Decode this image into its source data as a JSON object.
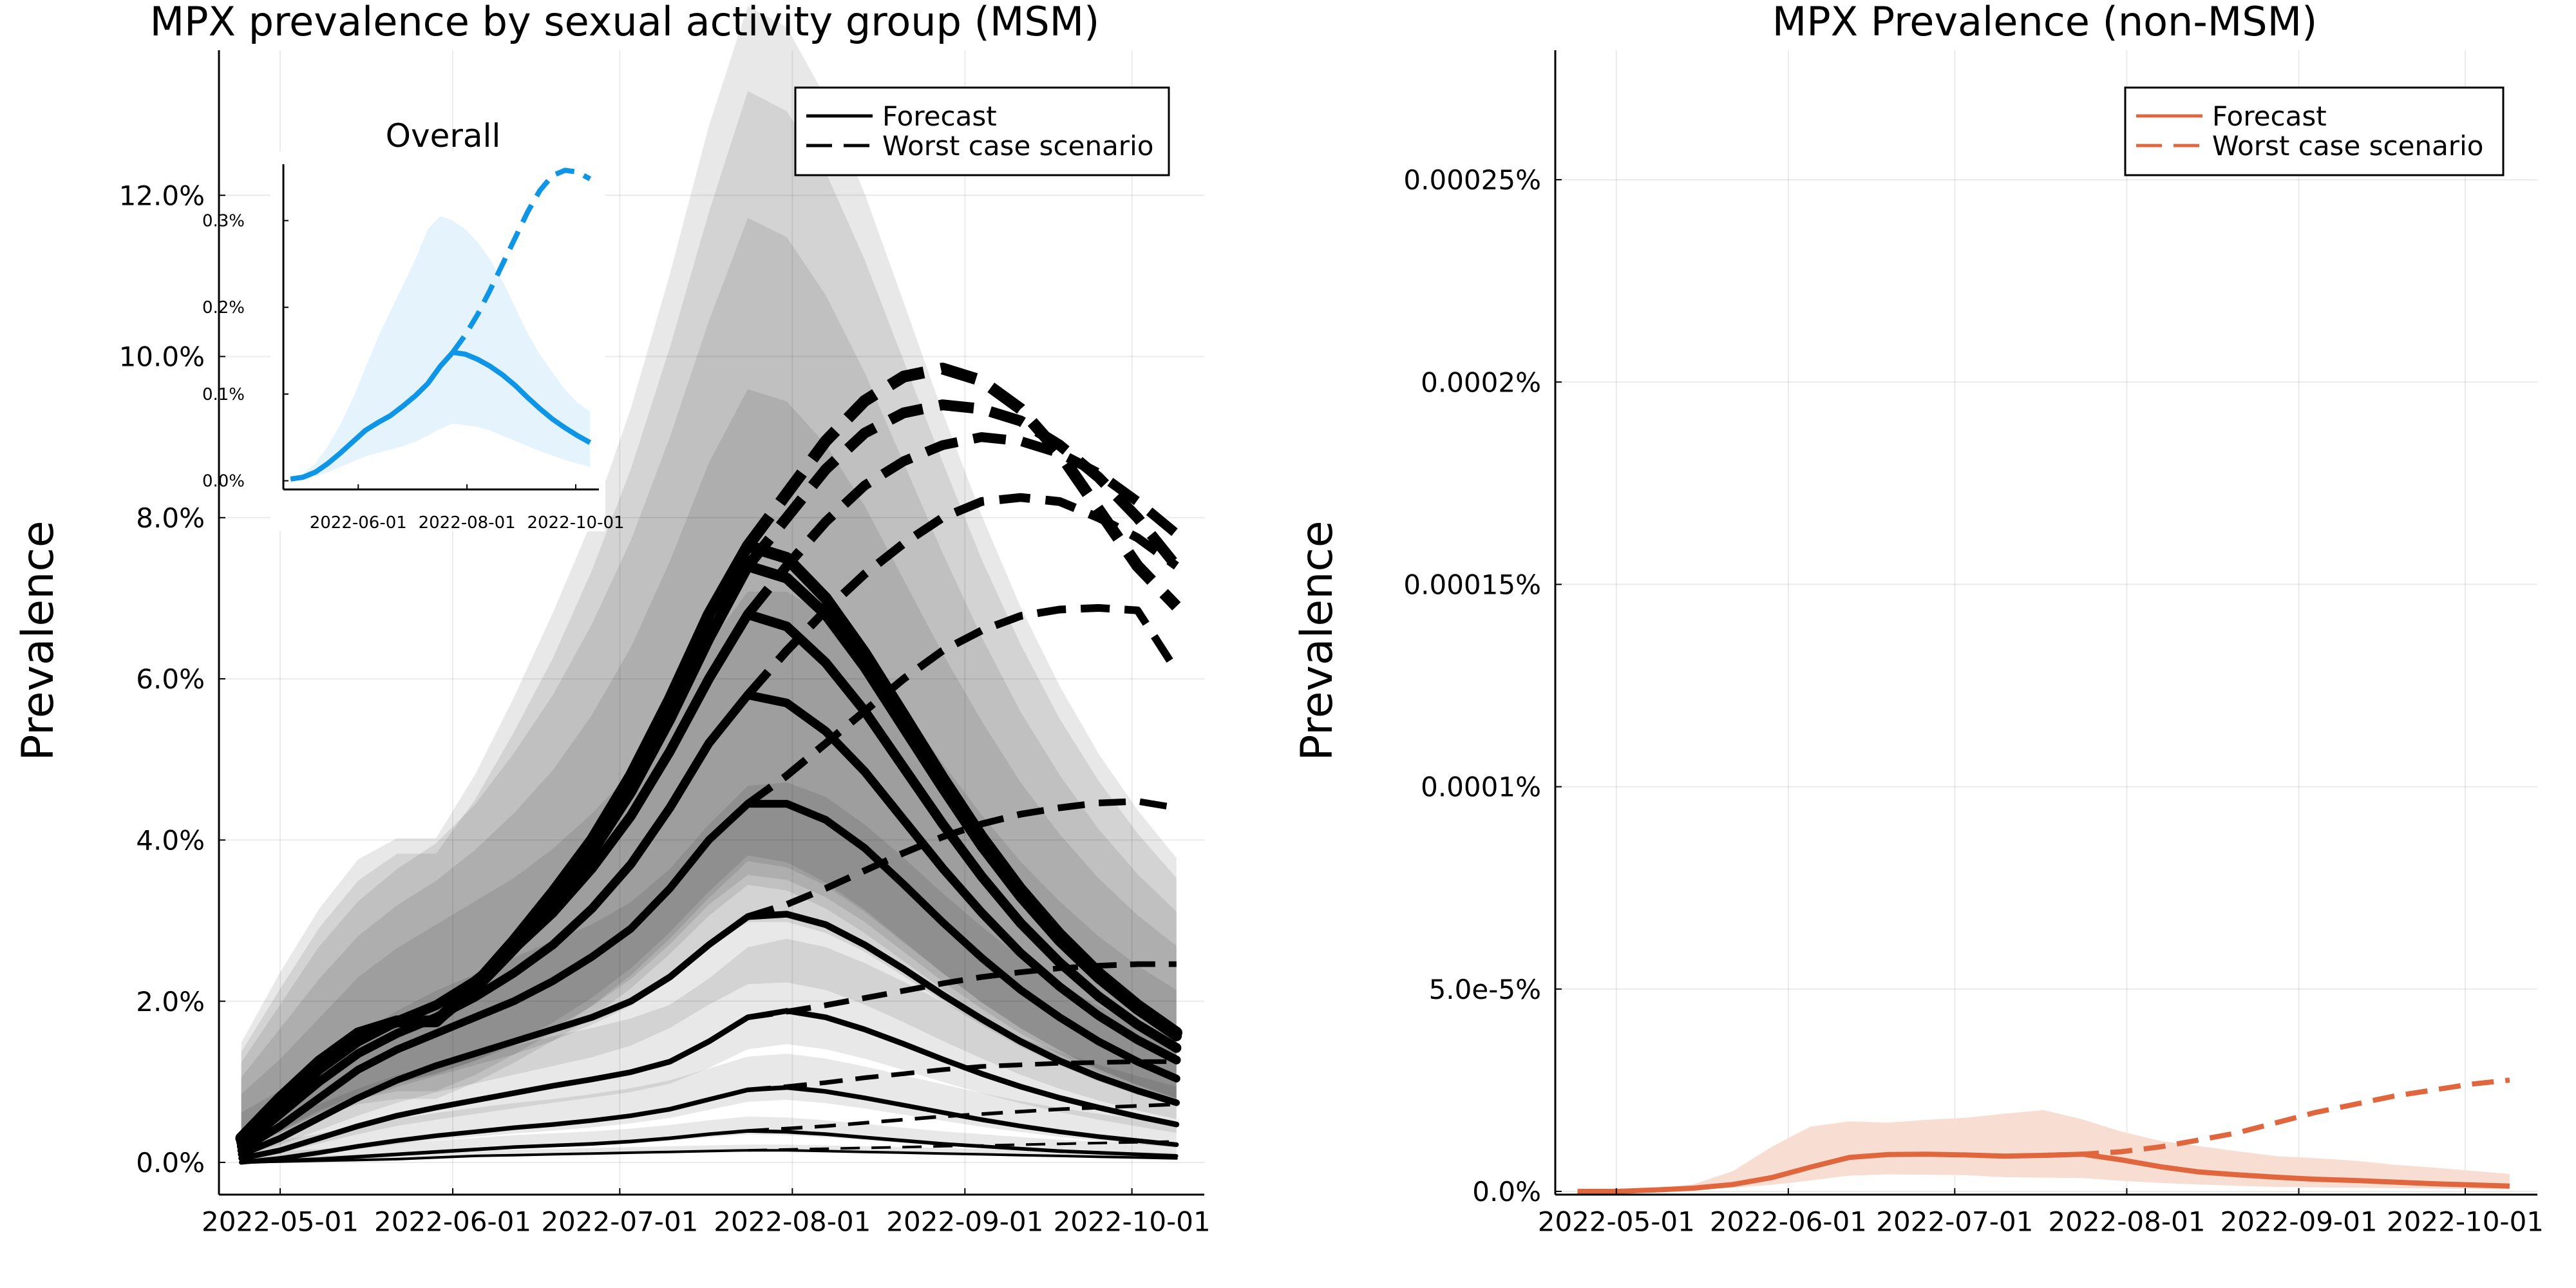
{
  "chart_data": [
    {
      "type": "line",
      "title": "MPX prevalence by sexual activity group (MSM)",
      "ylabel": "Prevalence",
      "xlabel": "",
      "x_ticks": [
        "2022-05-01",
        "2022-06-01",
        "2022-07-01",
        "2022-08-01",
        "2022-09-01",
        "2022-10-01"
      ],
      "y_ticks": [
        "0.0%",
        "2.0%",
        "4.0%",
        "6.0%",
        "8.0%",
        "10.0%",
        "12.0%"
      ],
      "ylim": [
        -0.004,
        0.138
      ],
      "xlim": [
        "2022-04-20",
        "2022-10-14"
      ],
      "grid": true,
      "legend": {
        "position": "top-right",
        "entries": [
          "Forecast",
          "Worst case scenario"
        ]
      },
      "legend_color": "#000000",
      "x": [
        "2022-04-24",
        "2022-05-01",
        "2022-05-08",
        "2022-05-15",
        "2022-05-22",
        "2022-05-29",
        "2022-06-05",
        "2022-06-12",
        "2022-06-19",
        "2022-06-26",
        "2022-07-03",
        "2022-07-10",
        "2022-07-17",
        "2022-07-24",
        "2022-07-31",
        "2022-08-07",
        "2022-08-14",
        "2022-08-21",
        "2022-08-28",
        "2022-09-04",
        "2022-09-11",
        "2022-09-18",
        "2022-09-25",
        "2022-10-02",
        "2022-10-09"
      ],
      "forecast_start": "2022-07-24",
      "groups": [
        {
          "forecast": [
            0.0,
            0.0001,
            0.0002,
            0.0003,
            0.0004,
            0.0006,
            0.0008,
            0.0009,
            0.001,
            0.0011,
            0.0012,
            0.0013,
            0.0014,
            0.0015,
            0.0015,
            0.0014,
            0.0013,
            0.0012,
            0.0011,
            0.001,
            0.0009,
            0.0008,
            0.0007,
            0.0006,
            0.0005
          ],
          "worst": [
            0.0015,
            0.0016,
            0.0017,
            0.0018,
            0.0019,
            0.002,
            0.0021,
            0.0022,
            0.0023,
            0.0024,
            0.0025,
            0.0026
          ],
          "band": [
            0.004,
            0.005
          ]
        },
        {
          "forecast": [
            0.0,
            0.0002,
            0.0004,
            0.0007,
            0.001,
            0.0013,
            0.0016,
            0.0019,
            0.0021,
            0.0023,
            0.0026,
            0.003,
            0.0035,
            0.0039,
            0.0038,
            0.0035,
            0.0031,
            0.0027,
            0.0023,
            0.002,
            0.0017,
            0.0014,
            0.0012,
            0.001,
            0.0008
          ],
          "worst": [
            0.0039,
            0.0042,
            0.0045,
            0.0049,
            0.0053,
            0.0057,
            0.006,
            0.0063,
            0.0066,
            0.0068,
            0.007,
            0.0072
          ],
          "band": [
            0.008,
            0.01
          ]
        },
        {
          "forecast": [
            0.0,
            0.0005,
            0.0012,
            0.002,
            0.0027,
            0.0033,
            0.0038,
            0.0043,
            0.0047,
            0.0052,
            0.0058,
            0.0066,
            0.0078,
            0.009,
            0.0093,
            0.0088,
            0.008,
            0.0071,
            0.0062,
            0.0053,
            0.0045,
            0.0038,
            0.0032,
            0.0027,
            0.0022
          ],
          "worst": [
            0.009,
            0.0094,
            0.0099,
            0.0105,
            0.011,
            0.0115,
            0.0119,
            0.0121,
            0.0123,
            0.0124,
            0.0125,
            0.0125
          ],
          "band": [
            0.014,
            0.016
          ]
        },
        {
          "forecast": [
            0.0005,
            0.0015,
            0.003,
            0.0045,
            0.0058,
            0.0068,
            0.0077,
            0.0086,
            0.0095,
            0.0103,
            0.0112,
            0.0125,
            0.015,
            0.018,
            0.0188,
            0.018,
            0.0165,
            0.0147,
            0.0128,
            0.011,
            0.0094,
            0.008,
            0.0068,
            0.0057,
            0.0047
          ],
          "worst": [
            0.018,
            0.0187,
            0.0195,
            0.0204,
            0.0213,
            0.0222,
            0.023,
            0.0236,
            0.0241,
            0.0244,
            0.0246,
            0.0246
          ],
          "band": [
            0.022,
            0.025
          ]
        },
        {
          "forecast": [
            0.001,
            0.003,
            0.0055,
            0.008,
            0.0102,
            0.012,
            0.0135,
            0.015,
            0.0165,
            0.018,
            0.02,
            0.023,
            0.027,
            0.0305,
            0.0308,
            0.0295,
            0.027,
            0.024,
            0.0208,
            0.0178,
            0.015,
            0.0126,
            0.0106,
            0.0089,
            0.0074
          ],
          "worst": [
            0.0305,
            0.032,
            0.034,
            0.0362,
            0.0384,
            0.0404,
            0.042,
            0.0432,
            0.044,
            0.0446,
            0.0448,
            0.044
          ],
          "band": [
            0.032,
            0.036
          ]
        },
        {
          "forecast": [
            0.0015,
            0.0045,
            0.008,
            0.0115,
            0.014,
            0.016,
            0.018,
            0.02,
            0.0225,
            0.0255,
            0.029,
            0.034,
            0.04,
            0.0445,
            0.0445,
            0.0425,
            0.039,
            0.0345,
            0.0298,
            0.0254,
            0.0214,
            0.018,
            0.015,
            0.0125,
            0.0104
          ],
          "worst": [
            0.0445,
            0.048,
            0.052,
            0.056,
            0.06,
            0.0635,
            0.066,
            0.0678,
            0.0686,
            0.0688,
            0.0685,
            0.061
          ],
          "band": [
            0.042,
            0.046
          ]
        },
        {
          "forecast": [
            0.002,
            0.006,
            0.01,
            0.0135,
            0.016,
            0.018,
            0.0205,
            0.0235,
            0.027,
            0.0315,
            0.037,
            0.044,
            0.052,
            0.058,
            0.057,
            0.0535,
            0.0485,
            0.0425,
            0.0365,
            0.031,
            0.026,
            0.0218,
            0.0182,
            0.0152,
            0.0127
          ],
          "worst": [
            0.058,
            0.0635,
            0.0685,
            0.073,
            0.0768,
            0.08,
            0.082,
            0.0825,
            0.082,
            0.08,
            0.0775,
            0.074
          ],
          "band": [
            0.05,
            0.052
          ]
        },
        {
          "forecast": [
            0.0025,
            0.007,
            0.0115,
            0.015,
            0.0175,
            0.0195,
            0.0225,
            0.0265,
            0.031,
            0.0365,
            0.043,
            0.051,
            0.06,
            0.068,
            0.0665,
            0.062,
            0.056,
            0.049,
            0.042,
            0.0355,
            0.0297,
            0.0248,
            0.0206,
            0.0171,
            0.0142
          ],
          "worst": [
            0.068,
            0.074,
            0.0795,
            0.084,
            0.087,
            0.089,
            0.09,
            0.0895,
            0.088,
            0.0855,
            0.082,
            0.078
          ],
          "band": [
            0.056,
            0.058
          ]
        },
        {
          "forecast": [
            0.0028,
            0.0075,
            0.012,
            0.0155,
            0.0175,
            0.0175,
            0.0215,
            0.0265,
            0.032,
            0.0385,
            0.046,
            0.055,
            0.065,
            0.074,
            0.0725,
            0.068,
            0.0615,
            0.054,
            0.0465,
            0.0393,
            0.033,
            0.0275,
            0.0229,
            0.019,
            0.0157
          ],
          "worst": [
            0.074,
            0.08,
            0.086,
            0.0905,
            0.093,
            0.094,
            0.0935,
            0.092,
            0.089,
            0.085,
            0.08,
            0.074
          ],
          "band": [
            0.06,
            0.062
          ]
        },
        {
          "forecast": [
            0.003,
            0.008,
            0.0125,
            0.016,
            0.0175,
            0.0175,
            0.022,
            0.0275,
            0.0335,
            0.04,
            0.048,
            0.0575,
            0.068,
            0.0765,
            0.075,
            0.07,
            0.0632,
            0.0555,
            0.0477,
            0.0404,
            0.0339,
            0.0283,
            0.0235,
            0.0195,
            0.0161
          ],
          "worst": [
            0.0765,
            0.083,
            0.0895,
            0.0945,
            0.0975,
            0.0985,
            0.097,
            0.0935,
            0.088,
            0.081,
            0.074,
            0.069
          ],
          "band": [
            0.064,
            0.066
          ]
        }
      ]
    },
    {
      "type": "line",
      "title": "Overall",
      "inset_of": "MPX prevalence by sexual activity group (MSM)",
      "x_ticks": [
        "2022-06-01",
        "2022-08-01",
        "2022-10-01"
      ],
      "y_ticks": [
        "0.0%",
        "0.1%",
        "0.2%",
        "0.3%"
      ],
      "ylim": [
        -0.0001,
        0.00365
      ],
      "xlim": [
        "2022-04-20",
        "2022-10-14"
      ],
      "color": "#0f95e6",
      "band_color": "#e4f3fc",
      "x": [
        "2022-04-24",
        "2022-05-01",
        "2022-05-08",
        "2022-05-15",
        "2022-05-22",
        "2022-05-29",
        "2022-06-05",
        "2022-06-12",
        "2022-06-19",
        "2022-06-26",
        "2022-07-03",
        "2022-07-10",
        "2022-07-17",
        "2022-07-24",
        "2022-07-31",
        "2022-08-07",
        "2022-08-14",
        "2022-08-21",
        "2022-08-28",
        "2022-09-04",
        "2022-09-11",
        "2022-09-18",
        "2022-09-25",
        "2022-10-02",
        "2022-10-09"
      ],
      "forecast": [
        2e-05,
        4e-05,
        0.0001,
        0.0002,
        0.00032,
        0.00045,
        0.00058,
        0.00067,
        0.00075,
        0.00086,
        0.00098,
        0.00112,
        0.00132,
        0.00148,
        0.00146,
        0.0014,
        0.00132,
        0.00122,
        0.0011,
        0.00096,
        0.00083,
        0.00071,
        0.00061,
        0.00052,
        0.00044
      ],
      "forecast_lower": [
        1e-05,
        2e-05,
        5e-05,
        0.0001,
        0.00016,
        0.00022,
        0.00028,
        0.00032,
        0.00036,
        0.0004,
        0.00045,
        0.00052,
        0.0006,
        0.00066,
        0.00064,
        0.00062,
        0.00058,
        0.00052,
        0.00046,
        0.0004,
        0.00034,
        0.00029,
        0.00024,
        0.0002,
        0.00016
      ],
      "forecast_upper": [
        4e-05,
        8e-05,
        0.0002,
        0.0004,
        0.00065,
        0.00095,
        0.0013,
        0.00165,
        0.00195,
        0.00225,
        0.00255,
        0.0029,
        0.00305,
        0.003,
        0.0029,
        0.00275,
        0.00255,
        0.0023,
        0.002,
        0.0017,
        0.00145,
        0.00125,
        0.00105,
        0.0009,
        0.0008
      ],
      "worst_x": [
        "2022-07-24",
        "2022-07-31",
        "2022-08-07",
        "2022-08-14",
        "2022-08-21",
        "2022-08-28",
        "2022-09-04",
        "2022-09-11",
        "2022-09-18",
        "2022-09-25",
        "2022-10-02",
        "2022-10-09"
      ],
      "worst": [
        0.00148,
        0.00168,
        0.00192,
        0.0022,
        0.0025,
        0.0028,
        0.0031,
        0.00335,
        0.00352,
        0.00358,
        0.00356,
        0.00348
      ]
    },
    {
      "type": "line",
      "title": "MPX Prevalence (non-MSM)",
      "ylabel": "Prevalence",
      "xlabel": "",
      "x_ticks": [
        "2022-05-01",
        "2022-06-01",
        "2022-07-01",
        "2022-08-01",
        "2022-09-01",
        "2022-10-01"
      ],
      "y_ticks": [
        "0.0%",
        "5.0e-5%",
        "0.0001%",
        "0.00015%",
        "0.0002%",
        "0.00025%"
      ],
      "ylim": [
        -8e-09,
        2.82e-06
      ],
      "xlim": [
        "2022-04-20",
        "2022-10-14"
      ],
      "grid": true,
      "color": "#e0663d",
      "band_color": "#f8ddd3",
      "legend": {
        "position": "top-right",
        "entries": [
          "Forecast",
          "Worst case scenario"
        ]
      },
      "x": [
        "2022-04-24",
        "2022-05-01",
        "2022-05-08",
        "2022-05-15",
        "2022-05-22",
        "2022-05-29",
        "2022-06-05",
        "2022-06-12",
        "2022-06-19",
        "2022-06-26",
        "2022-07-03",
        "2022-07-10",
        "2022-07-17",
        "2022-07-24",
        "2022-07-31",
        "2022-08-07",
        "2022-08-14",
        "2022-08-21",
        "2022-08-28",
        "2022-09-04",
        "2022-09-11",
        "2022-09-18",
        "2022-09-25",
        "2022-10-02",
        "2022-10-09"
      ],
      "forecast": [
        0.0,
        0.0,
        3.5e-09,
        8e-09,
        1.7e-08,
        3.4e-08,
        6e-08,
        8.4e-08,
        9.1e-08,
        9.2e-08,
        9e-08,
        8.7e-08,
        8.9e-08,
        9.2e-08,
        7.8e-08,
        6.1e-08,
        4.8e-08,
        4.1e-08,
        3.5e-08,
        3e-08,
        2.7e-08,
        2.3e-08,
        1.9e-08,
        1.6e-08,
        1.3e-08
      ],
      "forecast_lower": [
        0.0,
        0.0,
        2e-09,
        4.5e-09,
        9e-09,
        1.6e-08,
        2.7e-08,
        3.9e-08,
        4.2e-08,
        4.1e-08,
        4e-08,
        3.5e-08,
        3.4e-08,
        3.3e-08,
        2.6e-08,
        2.1e-08,
        1.7e-08,
        1.4e-08,
        1.1e-08,
        1e-08,
        9e-09,
        8e-09,
        7e-09,
        6e-09,
        5e-09
      ],
      "forecast_upper": [
        0.0,
        1e-09,
        6e-09,
        1.8e-08,
        5e-08,
        1.1e-07,
        1.6e-07,
        1.73e-07,
        1.7e-07,
        1.77e-07,
        1.82e-07,
        1.92e-07,
        2.01e-07,
        1.78e-07,
        1.48e-07,
        1.25e-07,
        1.12e-07,
        9.9e-08,
        8.7e-08,
        8.2e-08,
        7.6e-08,
        6.6e-08,
        5.9e-08,
        5.1e-08,
        4.3e-08
      ],
      "worst_x": [
        "2022-07-17",
        "2022-07-24",
        "2022-07-31",
        "2022-08-07",
        "2022-08-14",
        "2022-08-21",
        "2022-08-28",
        "2022-09-04",
        "2022-09-11",
        "2022-09-18",
        "2022-09-25",
        "2022-10-02",
        "2022-10-09"
      ],
      "worst": [
        8.9e-08,
        9.2e-08,
        9.8e-08,
        1.1e-07,
        1.27e-07,
        1.45e-07,
        1.7e-07,
        1.95e-07,
        2.15e-07,
        2.35e-07,
        2.5e-07,
        2.65e-07,
        2.75e-07
      ]
    }
  ]
}
